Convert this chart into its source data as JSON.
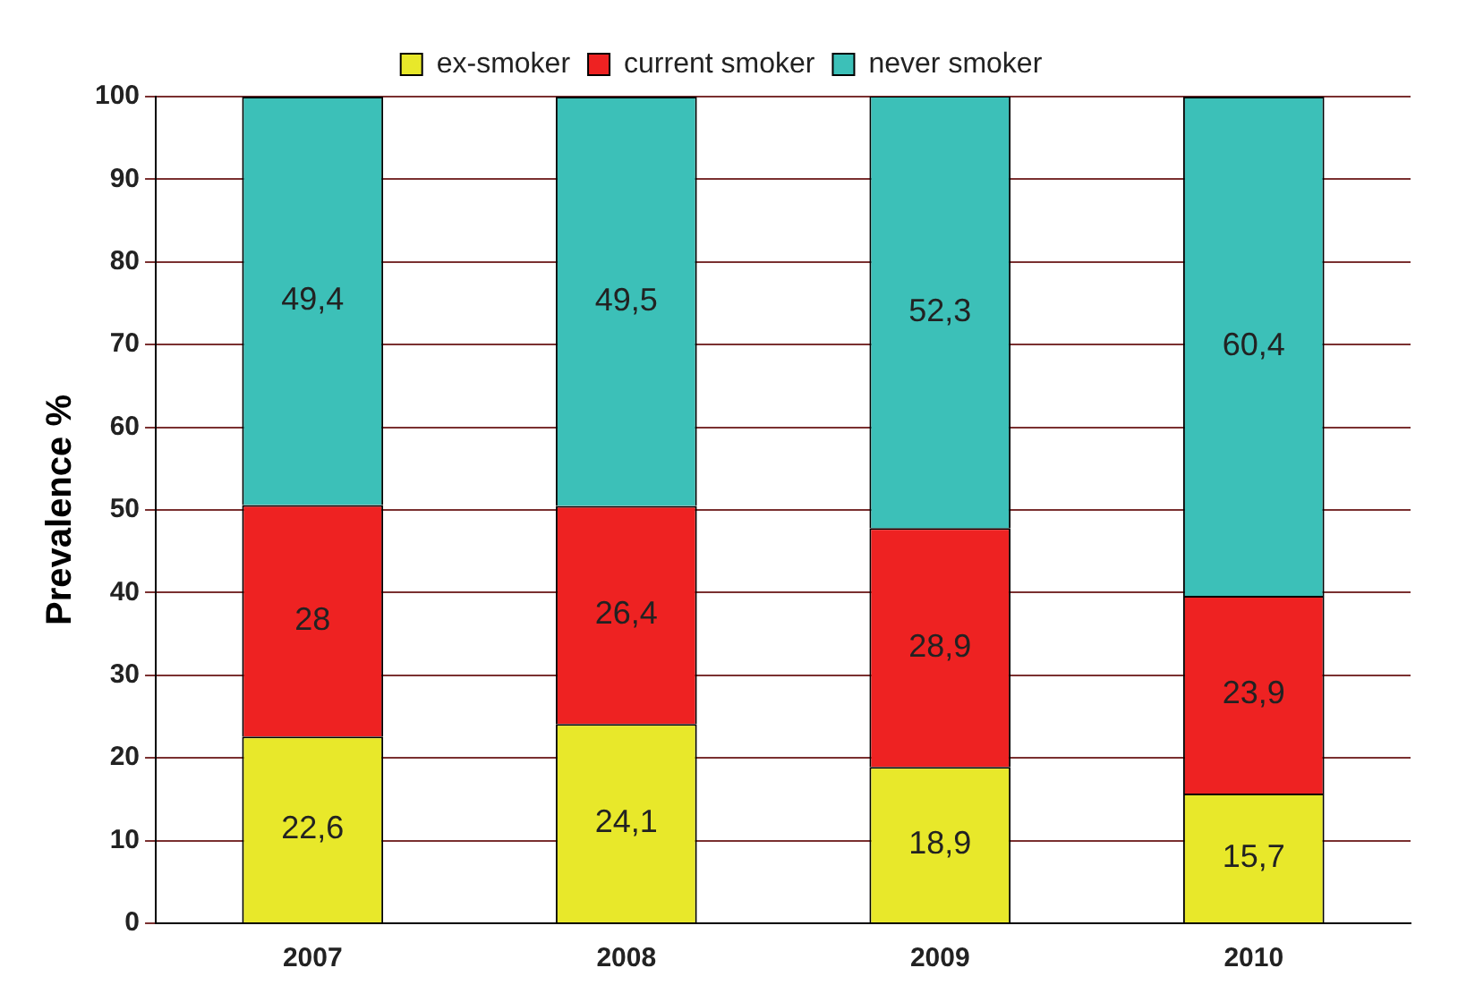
{
  "chart_data": {
    "type": "bar",
    "stacked": true,
    "ylabel": "Prevalence %",
    "categories": [
      "2007",
      "2008",
      "2009",
      "2010"
    ],
    "series": [
      {
        "name": "ex-smoker",
        "color": "#e8e82a",
        "values": [
          22.6,
          24.1,
          18.9,
          15.7
        ],
        "value_labels": [
          "22,6",
          "24,1",
          "18,9",
          "15,7"
        ]
      },
      {
        "name": "current smoker",
        "color": "#ee2222",
        "values": [
          28,
          26.4,
          28.9,
          23.9
        ],
        "value_labels": [
          "28",
          "26,4",
          "28,9",
          "23,9"
        ]
      },
      {
        "name": "never smoker",
        "color": "#3cc0b8",
        "values": [
          49.4,
          49.5,
          52.3,
          60.4
        ],
        "value_labels": [
          "49,4",
          "49,5",
          "52,3",
          "60,4"
        ]
      }
    ],
    "ylim": [
      0,
      100
    ],
    "yticks": [
      0,
      10,
      20,
      30,
      40,
      50,
      60,
      70,
      80,
      90,
      100
    ],
    "grid": "y",
    "legend": "top"
  }
}
